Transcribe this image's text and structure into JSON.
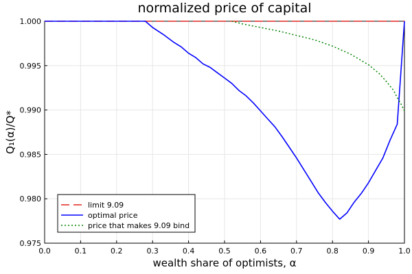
{
  "chart_data": {
    "type": "line",
    "title": "normalized price of capital",
    "xlabel": "wealth share of optimists, α",
    "ylabel": "Q₁(α)/Q*",
    "xlim": [
      0.0,
      1.0
    ],
    "ylim": [
      0.975,
      1.0
    ],
    "x_ticks": [
      0.0,
      0.1,
      0.2,
      0.3,
      0.4,
      0.5,
      0.6,
      0.7,
      0.8,
      0.9,
      1.0
    ],
    "x_tick_labels": [
      "0.0",
      "0.1",
      "0.2",
      "0.3",
      "0.4",
      "0.5",
      "0.6",
      "0.7",
      "0.8",
      "0.9",
      "1.0"
    ],
    "y_ticks": [
      0.975,
      0.98,
      0.985,
      0.99,
      0.995,
      1.0
    ],
    "y_tick_labels": [
      "0.975",
      "0.980",
      "0.985",
      "0.990",
      "0.995",
      "1.000"
    ],
    "grid": true,
    "legend_position": "bottom-left",
    "series": [
      {
        "name": "limit 9.09",
        "color": "#e0251e",
        "style": "dashed",
        "x": [
          0.0,
          1.0
        ],
        "y": [
          1.0,
          1.0
        ]
      },
      {
        "name": "optimal price",
        "color": "#0000ff",
        "style": "solid",
        "x": [
          0.0,
          0.28,
          0.3,
          0.33,
          0.36,
          0.38,
          0.4,
          0.42,
          0.44,
          0.46,
          0.48,
          0.5,
          0.52,
          0.54,
          0.56,
          0.58,
          0.6,
          0.62,
          0.64,
          0.66,
          0.68,
          0.7,
          0.72,
          0.74,
          0.76,
          0.78,
          0.8,
          0.82,
          0.84,
          0.86,
          0.88,
          0.9,
          0.92,
          0.94,
          0.96,
          0.98,
          1.0
        ],
        "y": [
          1.0,
          1.0,
          0.9993,
          0.9985,
          0.9976,
          0.9971,
          0.9964,
          0.9959,
          0.9952,
          0.9948,
          0.9942,
          0.9936,
          0.993,
          0.9922,
          0.9916,
          0.9908,
          0.9899,
          0.989,
          0.9881,
          0.987,
          0.9858,
          0.9846,
          0.9833,
          0.982,
          0.9807,
          0.9796,
          0.9786,
          0.9777,
          0.9784,
          0.9796,
          0.9806,
          0.9818,
          0.9832,
          0.9846,
          0.9866,
          0.9884,
          1.0
        ]
      },
      {
        "name": "price that makes 9.09 bind",
        "color": "#008000",
        "style": "dotted",
        "x": [
          0.52,
          0.55,
          0.6,
          0.65,
          0.7,
          0.75,
          0.8,
          0.85,
          0.9,
          0.93,
          0.95,
          0.97,
          0.98,
          0.99,
          1.0
        ],
        "y": [
          1.0,
          0.9997,
          0.9993,
          0.9989,
          0.9984,
          0.9979,
          0.9972,
          0.9963,
          0.9951,
          0.9941,
          0.9932,
          0.9922,
          0.9914,
          0.9907,
          0.9899
        ]
      }
    ]
  }
}
